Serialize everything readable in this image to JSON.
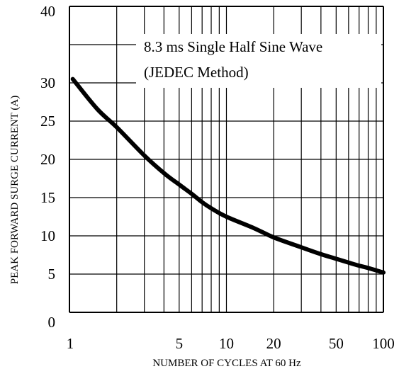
{
  "chart_data": {
    "type": "line",
    "xlabel": "NUMBER OF CYCLES AT 60 Hz",
    "ylabel": "PEAK FORWARD SURGE CURRENT (A)",
    "x_scale": "log",
    "xlim": [
      1,
      100
    ],
    "ylim": [
      0,
      40
    ],
    "grid": true,
    "x_ticks": [
      {
        "value": 1,
        "label": "1"
      },
      {
        "value": 5,
        "label": "5"
      },
      {
        "value": 10,
        "label": "10"
      },
      {
        "value": 20,
        "label": "20"
      },
      {
        "value": 50,
        "label": "50"
      },
      {
        "value": 100,
        "label": "100"
      }
    ],
    "y_ticks": [
      {
        "value": 0,
        "label": "0"
      },
      {
        "value": 5,
        "label": "5"
      },
      {
        "value": 10,
        "label": "10"
      },
      {
        "value": 15,
        "label": "15"
      },
      {
        "value": 20,
        "label": "20"
      },
      {
        "value": 25,
        "label": "25"
      },
      {
        "value": 30,
        "label": "30"
      },
      {
        "value": 40,
        "label": "40"
      }
    ],
    "annotation": [
      "8.3 ms Single Half Sine Wave",
      "(JEDEC Method)"
    ],
    "series": [
      {
        "color": "#000000",
        "x": [
          1.05,
          1.5,
          2,
          3,
          4,
          5,
          6,
          7,
          8,
          10,
          15,
          20,
          30,
          40,
          50,
          60,
          70,
          80,
          100
        ],
        "y": [
          30.5,
          26.6,
          24.2,
          20.5,
          18.2,
          16.7,
          15.5,
          14.4,
          13.6,
          12.5,
          11.0,
          9.8,
          8.5,
          7.6,
          7.0,
          6.5,
          6.1,
          5.8,
          5.2
        ]
      }
    ]
  }
}
